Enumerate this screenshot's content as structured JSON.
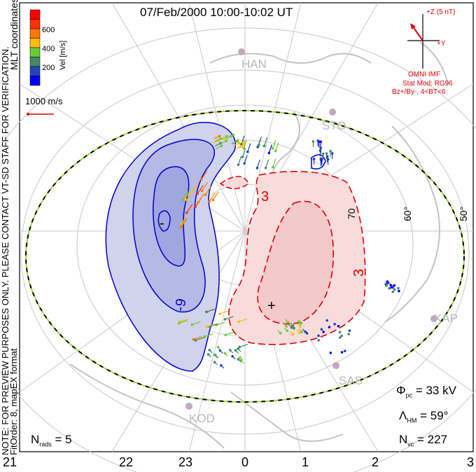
{
  "title": "07/Feb/2000 10:00-10:02 UT",
  "colorbar": {
    "label": "Vel [m/s]",
    "ticks": [
      "600",
      "400",
      "200"
    ],
    "colors": [
      "#ff0000",
      "#ff3300",
      "#ff7700",
      "#ffbb00",
      "#66cc33",
      "#448866",
      "#2244bb",
      "#0000ff"
    ]
  },
  "scale_vector": "1000 m/s",
  "coordinates": "MLT coordinates",
  "note": "NOTE: FOR PREVIEW PURPOSES ONLY. PLEASE CONTACT VT-SD STAFF FOR VERIFICATION.",
  "fit_info": "FitOrder: 8, mapEX format",
  "imf": {
    "z_label": "+Z (5 nT)",
    "y_label": "+Y",
    "source": "OMNI IMF",
    "model": "Stat Mod: RG96",
    "condition": "Bz+/By-, 4<BT<6"
  },
  "stations": [
    "HAN",
    "STO",
    "KOD",
    "SAS",
    "KAP"
  ],
  "lat_labels": [
    "70",
    "60°",
    "50°"
  ],
  "contour_labels": [
    "-9",
    "3",
    "3",
    "3"
  ],
  "extrema": {
    "min": "-",
    "max": "+"
  },
  "stats": {
    "phi_sym": "Φ",
    "phi_sub": "pc",
    "phi_val": "= 33 kV",
    "lam_sym": "Λ",
    "lam_sub": "HM",
    "lam_val": "= 59°",
    "nvc_sym": "N",
    "nvc_sub": "vc",
    "nvc_val": "= 227",
    "nrads_sym": "N",
    "nrads_sub": "rads",
    "nrads_val": "= 5"
  },
  "mlt_labels": [
    "21",
    "22",
    "23",
    "0",
    "1",
    "2",
    "3"
  ],
  "colors": {
    "negative": "#0000cc",
    "positive": "#dd0000",
    "neg_fill": "#c8cbe8",
    "pos_fill": "#f7d6d6"
  }
}
